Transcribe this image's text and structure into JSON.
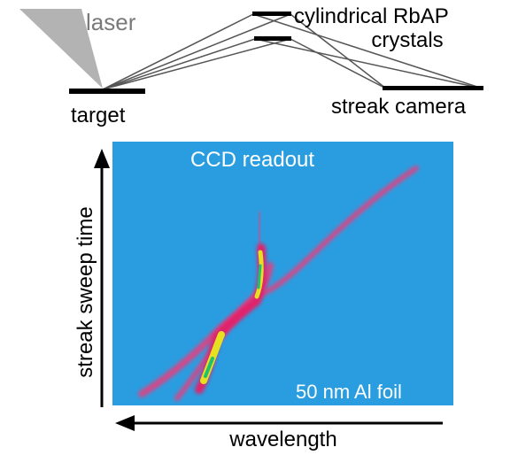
{
  "setup": {
    "laser": "laser",
    "target": "target",
    "crystals_line1": "cylindrical RbAP",
    "crystals_line2": "crystals",
    "camera": "streak camera"
  },
  "image": {
    "title": "CCD readout",
    "filter": "50 nm Al foil",
    "y_axis": "streak sweep time",
    "x_axis": "wavelength"
  }
}
